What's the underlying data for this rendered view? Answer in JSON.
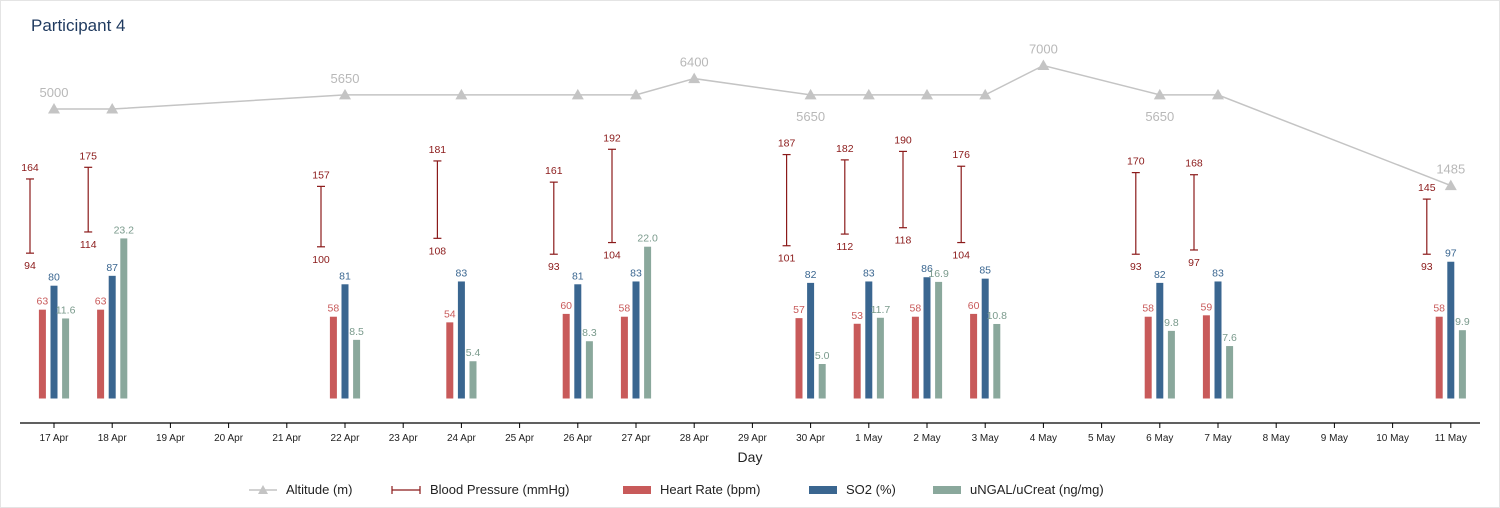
{
  "title": "Participant 4",
  "colors": {
    "altitude": "#c4c4c4",
    "blood_pressure": "#8b1a1a",
    "heart_rate": "#c85a5a",
    "so2": "#3a6690",
    "ungal": "#8aa89c",
    "ungal_label": "#7a9a8c"
  },
  "chart_data": {
    "type": "bar",
    "xlabel": "Day",
    "ylabel": "",
    "x_ticks": [
      "17 Apr",
      "18 Apr",
      "19 Apr",
      "20 Apr",
      "21 Apr",
      "22 Apr",
      "23 Apr",
      "24 Apr",
      "25 Apr",
      "26 Apr",
      "27 Apr",
      "28 Apr",
      "29 Apr",
      "30 Apr",
      "1 May",
      "2 May",
      "3 May",
      "4 May",
      "5 May",
      "6 May",
      "7 May",
      "8 May",
      "9 May",
      "10 May",
      "11 May"
    ],
    "legend": [
      {
        "key": "altitude",
        "label": "Altitude (m)"
      },
      {
        "key": "blood_pressure",
        "label": "Blood Pressure (mmHg)"
      },
      {
        "key": "heart_rate",
        "label": "Heart Rate (bpm)"
      },
      {
        "key": "so2",
        "label": "SO2 (%)"
      },
      {
        "key": "ungal",
        "label": "uNGAL/uCreat (ng/mg)"
      }
    ],
    "legend_placement": "bottom",
    "altitude": [
      {
        "day": "17 Apr",
        "value": 5000,
        "label": "5000"
      },
      {
        "day": "18 Apr",
        "value": 5000,
        "label": ""
      },
      {
        "day": "22 Apr",
        "value": 5650,
        "label": "5650"
      },
      {
        "day": "24 Apr",
        "value": 5650,
        "label": ""
      },
      {
        "day": "26 Apr",
        "value": 5650,
        "label": ""
      },
      {
        "day": "27 Apr",
        "value": 5650,
        "label": ""
      },
      {
        "day": "28 Apr",
        "value": 6400,
        "label": "6400"
      },
      {
        "day": "30 Apr",
        "value": 5650,
        "label": "5650"
      },
      {
        "day": "1 May",
        "value": 5650,
        "label": ""
      },
      {
        "day": "2 May",
        "value": 5650,
        "label": ""
      },
      {
        "day": "3 May",
        "value": 5650,
        "label": ""
      },
      {
        "day": "4 May",
        "value": 7000,
        "label": "7000"
      },
      {
        "day": "6 May",
        "value": 5650,
        "label": "5650"
      },
      {
        "day": "7 May",
        "value": 5650,
        "label": ""
      },
      {
        "day": "11 May",
        "value": 1485,
        "label": "1485"
      }
    ],
    "records": [
      {
        "day": "17 Apr",
        "bp_sys": 164,
        "bp_dia": 94,
        "heart_rate": 63,
        "so2": 80,
        "ungal": "11.6"
      },
      {
        "day": "18 Apr",
        "bp_sys": 175,
        "bp_dia": 114,
        "heart_rate": 63,
        "so2": 87,
        "ungal": "23.2"
      },
      {
        "day": "22 Apr",
        "bp_sys": 157,
        "bp_dia": 100,
        "heart_rate": 58,
        "so2": 81,
        "ungal": "8.5"
      },
      {
        "day": "24 Apr",
        "bp_sys": 181,
        "bp_dia": 108,
        "heart_rate": 54,
        "so2": 83,
        "ungal": "5.4"
      },
      {
        "day": "26 Apr",
        "bp_sys": 161,
        "bp_dia": 93,
        "heart_rate": 60,
        "so2": 81,
        "ungal": "8.3"
      },
      {
        "day": "27 Apr",
        "bp_sys": 192,
        "bp_dia": 104,
        "heart_rate": 58,
        "so2": 83,
        "ungal": "22.0"
      },
      {
        "day": "30 Apr",
        "bp_sys": 187,
        "bp_dia": 101,
        "heart_rate": 57,
        "so2": 82,
        "ungal": "5.0"
      },
      {
        "day": "1 May",
        "bp_sys": 182,
        "bp_dia": 112,
        "heart_rate": 53,
        "so2": 83,
        "ungal": "11.7"
      },
      {
        "day": "2 May",
        "bp_sys": 190,
        "bp_dia": 118,
        "heart_rate": 58,
        "so2": 86,
        "ungal": "16.9"
      },
      {
        "day": "3 May",
        "bp_sys": 176,
        "bp_dia": 104,
        "heart_rate": 60,
        "so2": 85,
        "ungal": "10.8"
      },
      {
        "day": "6 May",
        "bp_sys": 170,
        "bp_dia": 93,
        "heart_rate": 58,
        "so2": 82,
        "ungal": "9.8"
      },
      {
        "day": "7 May",
        "bp_sys": 168,
        "bp_dia": 97,
        "heart_rate": 59,
        "so2": 83,
        "ungal": "7.6"
      },
      {
        "day": "11 May",
        "bp_sys": 145,
        "bp_dia": 93,
        "heart_rate": 58,
        "so2": 97,
        "ungal": "9.9"
      }
    ]
  }
}
